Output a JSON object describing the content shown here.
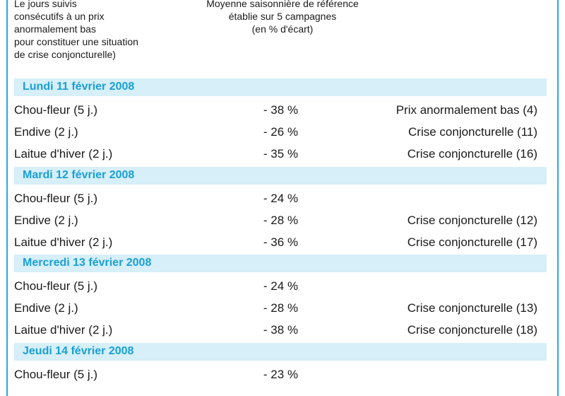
{
  "header": {
    "left_lines": [
      "Le jours suivis",
      "consécutifs à un prix",
      "anormalement bas",
      "pour constituer une situation",
      "de crise conjoncturelle)"
    ],
    "mid_lines": [
      "Moyenne saisonnière de référence",
      "établie sur 5 campagnes",
      "(en % d'écart)"
    ]
  },
  "sections": [
    {
      "date": "Lundi 11 février 2008",
      "rows": [
        {
          "product": "Chou-fleur (5 j.)",
          "pct": "- 38 %",
          "status": "Prix anormalement bas (4)"
        },
        {
          "product": "Endive (2 j.)",
          "pct": "- 26 %",
          "status": "Crise conjoncturelle (11)"
        },
        {
          "product": "Laitue d'hiver (2 j.)",
          "pct": "- 35 %",
          "status": "Crise conjoncturelle (16)"
        }
      ]
    },
    {
      "date": "Mardi 12 février 2008",
      "rows": [
        {
          "product": "Chou-fleur (5 j.)",
          "pct": "- 24 %",
          "status": ""
        },
        {
          "product": "Endive (2 j.)",
          "pct": "- 28 %",
          "status": "Crise conjoncturelle (12)"
        },
        {
          "product": "Laitue d'hiver (2 j.)",
          "pct": "- 36 %",
          "status": "Crise conjoncturelle (17)"
        }
      ]
    },
    {
      "date": "Mercredi 13 février 2008",
      "rows": [
        {
          "product": "Chou-fleur (5 j.)",
          "pct": "- 24 %",
          "status": ""
        },
        {
          "product": "Endive (2 j.)",
          "pct": "- 28 %",
          "status": "Crise conjoncturelle (13)"
        },
        {
          "product": "Laitue d'hiver (2 j.)",
          "pct": "- 38 %",
          "status": "Crise conjoncturelle (18)"
        }
      ]
    },
    {
      "date": "Jeudi 14 février 2008",
      "rows": [
        {
          "product": "Chou-fleur (5 j.)",
          "pct": "- 23 %",
          "status": ""
        }
      ]
    }
  ]
}
